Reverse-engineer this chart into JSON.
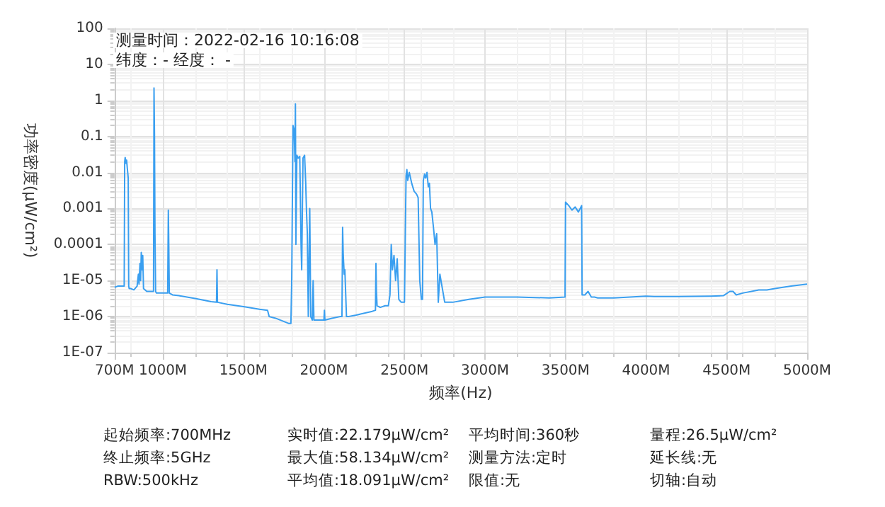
{
  "chart_data": {
    "type": "line",
    "xlabel": "频率(Hz)",
    "ylabel": "功率密度(μW/cm²)",
    "log": "y",
    "grid": true,
    "marker": "none",
    "line_style": "solid",
    "xlim": [
      700,
      5000
    ],
    "xticks": [
      {
        "value": 700,
        "label": "700M"
      },
      {
        "value": 1000,
        "label": "1000M"
      },
      {
        "value": 1500,
        "label": "1500M"
      },
      {
        "value": 2000,
        "label": "2000M"
      },
      {
        "value": 2500,
        "label": "2500M"
      },
      {
        "value": 3000,
        "label": "3000M"
      },
      {
        "value": 3500,
        "label": "3500M"
      },
      {
        "value": 4000,
        "label": "4000M"
      },
      {
        "value": 4500,
        "label": "4500M"
      },
      {
        "value": 5000,
        "label": "5000M"
      }
    ],
    "ylim": [
      1e-07,
      100
    ],
    "yticks": [
      {
        "value": 1e-07,
        "label": "1E-07"
      },
      {
        "value": 1e-06,
        "label": "1E-06"
      },
      {
        "value": 1e-05,
        "label": "1E-05"
      },
      0.0001,
      0.001,
      0.01,
      0.1,
      1,
      10,
      100
    ],
    "annotations": [
      "测量时间：2022-02-16 10:16:08",
      "纬度：- 经度： -",
      "起始频率:700MHz",
      "实时值:22.179μW/cm²",
      "平均时间:360秒",
      "量程:26.5μW/cm²",
      "终止频率:5GHz",
      "最大值:58.134μW/cm²",
      "测量方法:定时",
      "延长线:无",
      "RBW:500kHz",
      "平均值:18.091μW/cm²",
      "限值:无",
      "切轴:自动"
    ],
    "series": [
      {
        "color": "#3a9ff0",
        "x": [
          700,
          720,
          740,
          760,
          763,
          766,
          770,
          775,
          780,
          785,
          788,
          791,
          800,
          820,
          840,
          848,
          852,
          858,
          862,
          866,
          870,
          875,
          880,
          900,
          930,
          942,
          945,
          948,
          951,
          955,
          960,
          990,
          1030,
          1034,
          1036,
          1040,
          1060,
          1100,
          1200,
          1300,
          1333,
          1336,
          1339,
          1400,
          1500,
          1600,
          1650,
          1660,
          1700,
          1780,
          1795,
          1800,
          1808,
          1815,
          1820,
          1823,
          1826,
          1832,
          1840,
          1850,
          1858,
          1862,
          1870,
          1880,
          1887,
          1892,
          1897,
          1903,
          1912,
          1918,
          1928,
          1933,
          1938,
          1945,
          1960,
          1990,
          2000,
          2003,
          2006,
          2050,
          2100,
          2112,
          2116,
          2120,
          2126,
          2130,
          2140,
          2150,
          2200,
          2300,
          2320,
          2323,
          2326,
          2330,
          2350,
          2380,
          2400,
          2410,
          2418,
          2425,
          2435,
          2445,
          2455,
          2465,
          2480,
          2500,
          2510,
          2515,
          2520,
          2530,
          2545,
          2560,
          2575,
          2585,
          2595,
          2605,
          2612,
          2617,
          2625,
          2632,
          2640,
          2648,
          2655,
          2662,
          2670,
          2680,
          2690,
          2700,
          2710,
          2716,
          2720,
          2750,
          2800,
          2900,
          3000,
          3200,
          3400,
          3497,
          3500,
          3520,
          3540,
          3560,
          3580,
          3600,
          3603,
          3620,
          3640,
          3660,
          3680,
          3700,
          3800,
          3900,
          4000,
          4050,
          4200,
          4400,
          4480,
          4520,
          4540,
          4560,
          4600,
          4700,
          4750,
          4800,
          4900,
          5000
        ],
        "values": [
          6.5e-06,
          7e-06,
          7e-06,
          7e-06,
          0.02,
          0.026,
          0.018,
          0.022,
          0.012,
          0.007,
          7e-06,
          6e-06,
          6e-06,
          5.5e-06,
          7e-06,
          1.5e-05,
          8e-06,
          3e-05,
          1e-05,
          6e-05,
          2e-05,
          5e-05,
          6e-06,
          5e-06,
          5e-06,
          5e-06,
          2.2,
          0.12,
          0.0002,
          5e-06,
          4.5e-06,
          4.5e-06,
          4.5e-06,
          0.0009,
          0.0002,
          4.5e-06,
          4e-06,
          3.8e-06,
          3.2e-06,
          2.6e-06,
          2.5e-06,
          2e-05,
          2.5e-06,
          2.2e-06,
          1.9e-06,
          1.6e-06,
          1.5e-06,
          1e-06,
          9e-07,
          6.5e-07,
          6.5e-07,
          1e-05,
          0.2,
          0.15,
          0.02,
          0.8,
          0.0001,
          0.03,
          0.025,
          0.028,
          0.0001,
          2e-05,
          0.025,
          0.03,
          0.005,
          0.0008,
          0.0002,
          1e-06,
          0.001,
          1e-06,
          8e-07,
          1e-05,
          8e-07,
          8e-07,
          8e-07,
          8e-07,
          8e-07,
          1.5e-06,
          8e-07,
          9e-07,
          1e-06,
          1e-06,
          0.0003,
          5e-05,
          1.5e-05,
          2e-05,
          1e-06,
          1e-06,
          1.1e-06,
          1.4e-06,
          1.5e-06,
          3e-05,
          5e-06,
          2e-06,
          1.8e-06,
          2e-06,
          2e-06,
          4e-06,
          0.0001,
          2e-05,
          5e-05,
          1e-05,
          4e-05,
          3e-06,
          2.5e-06,
          2.5e-06,
          0.008,
          0.012,
          0.006,
          0.01,
          0.005,
          0.003,
          0.0025,
          0.002,
          1e-05,
          3e-06,
          3e-06,
          0.006,
          0.009,
          0.007,
          0.01,
          0.004,
          0.005,
          0.001,
          0.0008,
          0.0003,
          0.0001,
          0.0002,
          2.5e-06,
          2.5e-06,
          1.5e-05,
          2.5e-06,
          2.5e-06,
          3e-06,
          3.5e-06,
          3.5e-06,
          3.3e-06,
          3.5e-06,
          0.0015,
          0.0012,
          0.0009,
          0.0011,
          0.0008,
          0.0012,
          4e-06,
          4e-06,
          5e-06,
          3.5e-06,
          3.5e-06,
          3.3e-06,
          3.3e-06,
          3.5e-06,
          3.7e-06,
          3.6e-06,
          3.6e-06,
          3.7e-06,
          3.8e-06,
          5e-06,
          5e-06,
          4e-06,
          4.5e-06,
          5.5e-06,
          5.5e-06,
          6e-06,
          7e-06,
          8e-06
        ]
      }
    ]
  }
}
